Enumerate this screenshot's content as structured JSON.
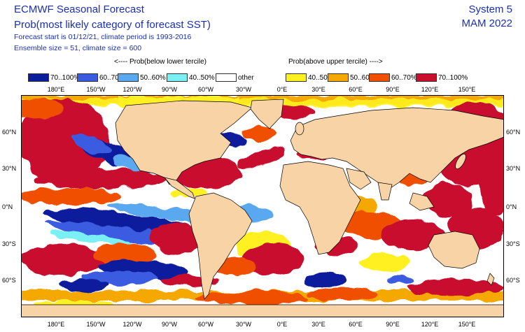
{
  "header": {
    "title": "ECMWF Seasonal Forecast",
    "subtitle": "Prob(most likely category of forecast SST)",
    "forecast_info": "Forecast start is 01/12/21, climate period is 1993-2016",
    "ensemble_info": "Ensemble size = 51, climate size = 600",
    "system": "System 5",
    "season": "MAM 2022"
  },
  "legend": {
    "below_caption": "<---- Prob(below lower tercile)",
    "above_caption": "Prob(above upper tercile) ---->",
    "items": [
      {
        "label": "70..100%",
        "color": "#0a1e9c"
      },
      {
        "label": "60..70%",
        "color": "#3a5be0"
      },
      {
        "label": "50..60%",
        "color": "#5aa8f0"
      },
      {
        "label": "40..50%",
        "color": "#7af0f5"
      },
      {
        "label": "other",
        "color": "#ffffff"
      },
      {
        "label": "40..50%",
        "color": "#fff020"
      },
      {
        "label": "50..60%",
        "color": "#f5a800"
      },
      {
        "label": "60..70%",
        "color": "#f05000"
      },
      {
        "label": "70..100%",
        "color": "#c8102e"
      }
    ]
  },
  "map": {
    "land_color": "#f7d3a6",
    "x_ticks": [
      "180°E",
      "150°W",
      "120°W",
      "90°W",
      "60°W",
      "30°W",
      "0°E",
      "30°E",
      "60°E",
      "90°E",
      "120°E",
      "150°E"
    ],
    "y_ticks": [
      "60°N",
      "30°N",
      "0°N",
      "30°S",
      "60°S"
    ]
  }
}
